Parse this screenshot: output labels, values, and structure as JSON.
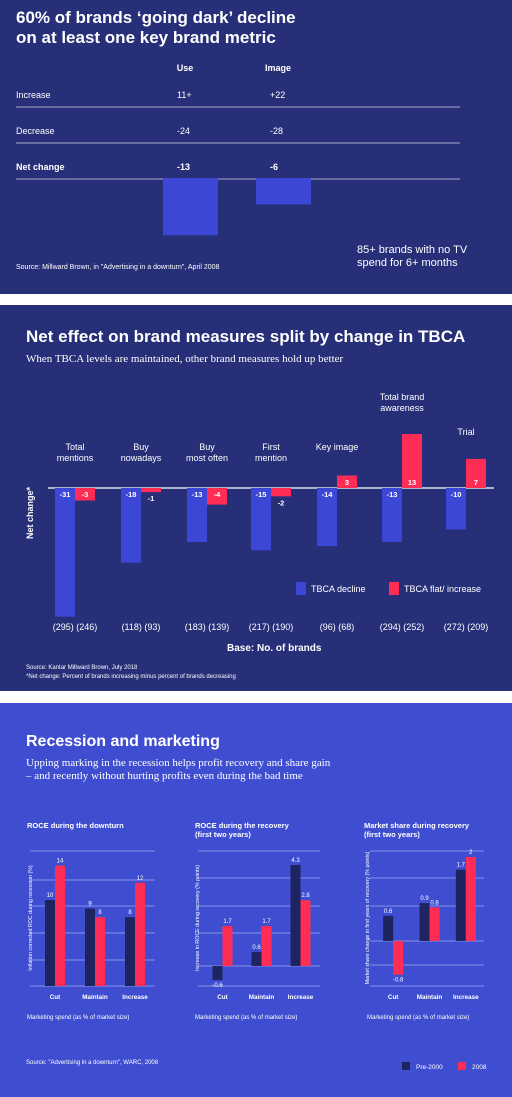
{
  "colors": {
    "panel_dark": "#262f78",
    "panel_blue": "#3f4ed1",
    "bar_blue": "#3d47d6",
    "bar_red": "#ff2d55",
    "bar_navy": "#1d2460",
    "white": "#ffffff"
  },
  "panel1": {
    "title_line1": "60% of brands ‘going dark’ decline",
    "title_line2": "on at least one key brand metric",
    "note_line1": "85+ brands with no TV",
    "note_line2": "spend for 6+ months",
    "source": "Source: Millward Brown, in \"Advertising in a downturn\", April 2008"
  },
  "panel2": {
    "title": "Net effect on brand measures split by change in TBCA",
    "subtitle": "When TBCA levels are maintained, other brand measures hold up better",
    "ylabel": "Net change*",
    "base_label": "Base: No. of brands",
    "source": "Source: Kantar Millward Brown, July 2018",
    "footnote": "*Net change: Percent of brands increasing minus percent of brands decreasing"
  },
  "panel3": {
    "title": "Recession and marketing",
    "subtitle_line1": "Upping marking in the recession helps profit recovery and share gain",
    "subtitle_line2": "– and recently without hurting profits even during the bad time",
    "source": "Source: \"Advertising in a downturn\", WARC, 2008"
  },
  "chart_data": [
    {
      "type": "table",
      "title": "60% of brands ‘going dark’ decline on at least one key brand metric",
      "columns": [
        "Use",
        "Image"
      ],
      "rows": [
        {
          "label": "Increase",
          "values": [
            "11+",
            "+22"
          ]
        },
        {
          "label": "Decrease",
          "values": [
            "-24",
            "-28"
          ]
        },
        {
          "label": "Net change",
          "values": [
            "-13",
            "-6"
          ]
        }
      ],
      "bars": [
        {
          "category": "Use",
          "value": -13
        },
        {
          "category": "Image",
          "value": -6
        }
      ]
    },
    {
      "type": "bar",
      "title": "Net effect on brand measures split by change in TBCA",
      "ylabel": "Net change*",
      "xlabel": "Base: No. of brands",
      "legend_position": "bottom-right",
      "categories": [
        {
          "label": [
            "Total",
            "mentions"
          ],
          "base": "(295) (246)"
        },
        {
          "label": [
            "Buy",
            "nowadays"
          ],
          "base": "(118) (93)"
        },
        {
          "label": [
            "Buy",
            "most often"
          ],
          "base": "(183) (139)"
        },
        {
          "label": [
            "First",
            "mention"
          ],
          "base": "(217) (190)"
        },
        {
          "label": [
            "Key image"
          ],
          "base": "(96) (68)"
        },
        {
          "label": [
            "Total brand",
            "awareness"
          ],
          "base": "(294) (252)"
        },
        {
          "label": [
            "Trial"
          ],
          "base": "(272) (209)"
        }
      ],
      "series": [
        {
          "name": "TBCA decline",
          "values": [
            -31,
            -18,
            -13,
            -15,
            -14,
            -13,
            -10
          ]
        },
        {
          "name": "TBCA flat/ increase",
          "values": [
            -3,
            -1,
            -4,
            -2,
            3,
            13,
            7
          ]
        }
      ]
    },
    {
      "type": "bar",
      "title": "ROCE during the downturn",
      "ylabel": "Inflation corrected ROC during recession (%)",
      "xlabel": "Marketing spend (as % of market size)",
      "categories": [
        "Cut",
        "Maintain",
        "Increase"
      ],
      "series": [
        {
          "name": "Pre-2000",
          "values": [
            10,
            9,
            8
          ]
        },
        {
          "name": "2008",
          "values": [
            14,
            8,
            12
          ]
        }
      ]
    },
    {
      "type": "bar",
      "title": "ROCE during the recovery (first two years)",
      "ylabel": "Increase in ROCE during recovery (% points)",
      "xlabel": "Marketing spend (as % of market size)",
      "categories": [
        "Cut",
        "Maintain",
        "Increase"
      ],
      "series": [
        {
          "name": "Pre-2000",
          "values": [
            -0.6,
            0.6,
            4.3
          ]
        },
        {
          "name": "2008",
          "values": [
            1.7,
            1.7,
            2.8
          ]
        }
      ]
    },
    {
      "type": "bar",
      "title": "Market share during recovery (first two years)",
      "ylabel": "Market share change in first years of recovery (% points)",
      "xlabel": "Marketing spend (as % of market size)",
      "categories": [
        "Cut",
        "Maintain",
        "Increase"
      ],
      "series": [
        {
          "name": "Pre-2000",
          "values": [
            0.6,
            0.9,
            1.7
          ]
        },
        {
          "name": "2008",
          "values": [
            -0.8,
            0.8,
            2.0
          ]
        }
      ]
    }
  ]
}
